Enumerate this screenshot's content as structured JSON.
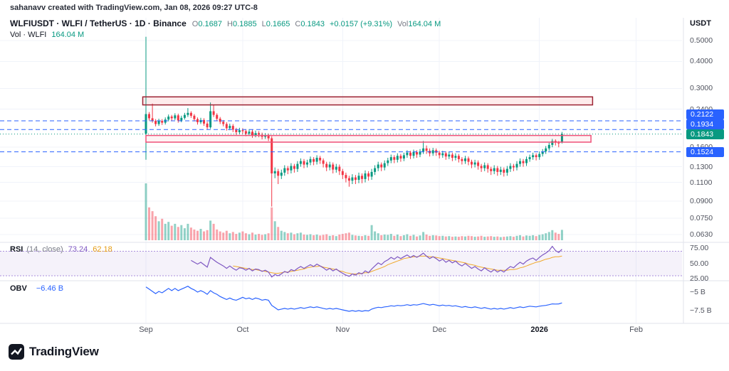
{
  "watermark": "sahanavv created with TradingView.com, Jan 08, 2026 09:27 UTC-8",
  "legend": {
    "title": "WLFIUSDT · WLFI / TetherUS · 1D · Binance",
    "ohlc": {
      "o_label": "O",
      "o": "0.1687",
      "h_label": "H",
      "h": "0.1885",
      "l_label": "L",
      "l": "0.1665",
      "c_label": "C",
      "c": "0.1843",
      "change": "+0.0157 (+9.31%)",
      "vol_label": "Vol",
      "vol": "164.04 M"
    },
    "vol_row": {
      "label": "Vol · WLFI",
      "value": "164.04 M"
    },
    "rsi_row": {
      "title": "RSI",
      "params": "(14, close)",
      "value": "73.24",
      "ma_value": "62.18"
    },
    "obv_row": {
      "title": "OBV",
      "value": "−6.46 B"
    }
  },
  "axis": {
    "currency": "USDT",
    "rsi_axis": [
      {
        "text": "75.00",
        "value": 75
      },
      {
        "text": "50.00",
        "value": 50
      },
      {
        "text": "25.00",
        "value": 25
      }
    ],
    "obv_axis": [
      {
        "text": "−5 B",
        "value": -5
      },
      {
        "text": "−7.5 B",
        "value": -7.5
      }
    ],
    "time_axis": [
      {
        "text": "Sep",
        "index": 0
      },
      {
        "text": "Oct",
        "index": 30
      },
      {
        "text": "Nov",
        "index": 61
      },
      {
        "text": "Dec",
        "index": 91
      },
      {
        "text": "2026",
        "index": 122,
        "major": true
      },
      {
        "text": "Feb",
        "index": 152
      }
    ]
  },
  "logo": {
    "text": "TradingView"
  },
  "colors": {
    "up": "#089981",
    "down": "#f23645",
    "vol_up": "rgba(8,153,129,0.45)",
    "vol_down": "rgba(242,54,69,0.45)",
    "accent_blue": "#2962ff",
    "rsi": "#7e57c2",
    "rsi_ma": "#f0a92c",
    "rsi_band": "#aa8fdc",
    "rsi_fill": "rgba(126,87,194,0.08)",
    "obv": "#2962ff",
    "grid": "#f0f3fa",
    "separator": "#e0e3eb"
  },
  "chart_data": {
    "type": "candlestick",
    "symbol": "WLFIUSDT",
    "pair": "WLFI / TetherUS",
    "interval": "1D",
    "exchange": "Binance",
    "current": {
      "o": 0.1687,
      "h": 0.1885,
      "l": 0.1665,
      "c": 0.1843,
      "change": 0.0157,
      "change_pct": 9.31,
      "volume_m": 164.04
    },
    "price_scale": {
      "type": "log",
      "labels": [
        0.5,
        0.4,
        0.3,
        0.24,
        0.16,
        0.13,
        0.11,
        0.09,
        0.075,
        0.063
      ]
    },
    "levels": [
      {
        "price": 0.2122,
        "label": "0.2122",
        "color": "#2962ff",
        "dash": "6,4"
      },
      {
        "price": 0.1934,
        "label": "0.1934",
        "color": "#2962ff",
        "dash": "6,4"
      },
      {
        "price": 0.1843,
        "label": "0.1843",
        "color": "#089981",
        "dash": "1,3",
        "current": true
      },
      {
        "price": 0.1524,
        "label": "0.1524",
        "color": "#2962ff",
        "dash": "6,4"
      }
    ],
    "zones": [
      {
        "name": "resistance-zone-upper",
        "top": 0.274,
        "bottom": 0.2515,
        "start_index": -1,
        "end_index": 138.5,
        "border": "#9c2333",
        "fill": "rgba(242,54,69,0.10)"
      },
      {
        "name": "resistance-zone-lower",
        "top": 0.1815,
        "bottom": 0.169,
        "start_index": 0,
        "end_index": 138,
        "border": "#ef5078",
        "fill": "rgba(242,54,69,0.06)"
      }
    ],
    "candles": [
      [
        0.185,
        0.52,
        0.14,
        0.228
      ],
      [
        0.228,
        0.233,
        0.213,
        0.218
      ],
      [
        0.218,
        0.255,
        0.208,
        0.212
      ],
      [
        0.212,
        0.216,
        0.2,
        0.205
      ],
      [
        0.205,
        0.217,
        0.201,
        0.212
      ],
      [
        0.212,
        0.216,
        0.203,
        0.208
      ],
      [
        0.208,
        0.22,
        0.204,
        0.215
      ],
      [
        0.215,
        0.227,
        0.211,
        0.222
      ],
      [
        0.222,
        0.226,
        0.213,
        0.218
      ],
      [
        0.218,
        0.23,
        0.214,
        0.225
      ],
      [
        0.225,
        0.229,
        0.208,
        0.213
      ],
      [
        0.213,
        0.224,
        0.209,
        0.219
      ],
      [
        0.219,
        0.231,
        0.215,
        0.226
      ],
      [
        0.226,
        0.243,
        0.221,
        0.231
      ],
      [
        0.231,
        0.235,
        0.219,
        0.224
      ],
      [
        0.224,
        0.228,
        0.211,
        0.216
      ],
      [
        0.216,
        0.22,
        0.204,
        0.209
      ],
      [
        0.209,
        0.219,
        0.205,
        0.214
      ],
      [
        0.214,
        0.218,
        0.201,
        0.206
      ],
      [
        0.206,
        0.21,
        0.193,
        0.198
      ],
      [
        0.198,
        0.258,
        0.195,
        0.235
      ],
      [
        0.235,
        0.252,
        0.221,
        0.226
      ],
      [
        0.226,
        0.23,
        0.212,
        0.217
      ],
      [
        0.217,
        0.221,
        0.205,
        0.21
      ],
      [
        0.21,
        0.214,
        0.2,
        0.205
      ],
      [
        0.205,
        0.209,
        0.191,
        0.196
      ],
      [
        0.196,
        0.206,
        0.192,
        0.201
      ],
      [
        0.201,
        0.205,
        0.188,
        0.193
      ],
      [
        0.193,
        0.197,
        0.183,
        0.188
      ],
      [
        0.188,
        0.197,
        0.184,
        0.192
      ],
      [
        0.192,
        0.196,
        0.185,
        0.19
      ],
      [
        0.19,
        0.194,
        0.18,
        0.185
      ],
      [
        0.185,
        0.194,
        0.181,
        0.189
      ],
      [
        0.189,
        0.193,
        0.177,
        0.182
      ],
      [
        0.182,
        0.191,
        0.178,
        0.186
      ],
      [
        0.186,
        0.19,
        0.178,
        0.183
      ],
      [
        0.183,
        0.187,
        0.174,
        0.179
      ],
      [
        0.179,
        0.186,
        0.175,
        0.181
      ],
      [
        0.181,
        0.185,
        0.171,
        0.176
      ],
      [
        0.176,
        0.18,
        0.085,
        0.121
      ],
      [
        0.121,
        0.129,
        0.115,
        0.124
      ],
      [
        0.124,
        0.127,
        0.108,
        0.118
      ],
      [
        0.118,
        0.126,
        0.114,
        0.122
      ],
      [
        0.122,
        0.132,
        0.118,
        0.128
      ],
      [
        0.128,
        0.131,
        0.12,
        0.125
      ],
      [
        0.125,
        0.135,
        0.121,
        0.131
      ],
      [
        0.131,
        0.134,
        0.122,
        0.127
      ],
      [
        0.127,
        0.138,
        0.123,
        0.134
      ],
      [
        0.134,
        0.142,
        0.13,
        0.138
      ],
      [
        0.138,
        0.141,
        0.128,
        0.133
      ],
      [
        0.133,
        0.14,
        0.129,
        0.136
      ],
      [
        0.136,
        0.145,
        0.132,
        0.141
      ],
      [
        0.141,
        0.144,
        0.132,
        0.137
      ],
      [
        0.137,
        0.147,
        0.133,
        0.143
      ],
      [
        0.143,
        0.146,
        0.134,
        0.139
      ],
      [
        0.139,
        0.142,
        0.129,
        0.134
      ],
      [
        0.134,
        0.137,
        0.124,
        0.129
      ],
      [
        0.129,
        0.137,
        0.125,
        0.133
      ],
      [
        0.133,
        0.136,
        0.121,
        0.126
      ],
      [
        0.126,
        0.134,
        0.122,
        0.13
      ],
      [
        0.13,
        0.133,
        0.119,
        0.124
      ],
      [
        0.124,
        0.127,
        0.114,
        0.119
      ],
      [
        0.119,
        0.122,
        0.11,
        0.115
      ],
      [
        0.115,
        0.118,
        0.105,
        0.112
      ],
      [
        0.112,
        0.12,
        0.108,
        0.116
      ],
      [
        0.116,
        0.119,
        0.108,
        0.113
      ],
      [
        0.113,
        0.122,
        0.109,
        0.118
      ],
      [
        0.118,
        0.121,
        0.109,
        0.114
      ],
      [
        0.114,
        0.125,
        0.11,
        0.121
      ],
      [
        0.121,
        0.124,
        0.112,
        0.117
      ],
      [
        0.117,
        0.127,
        0.113,
        0.123
      ],
      [
        0.123,
        0.132,
        0.119,
        0.128
      ],
      [
        0.128,
        0.137,
        0.124,
        0.133
      ],
      [
        0.133,
        0.136,
        0.124,
        0.129
      ],
      [
        0.129,
        0.139,
        0.125,
        0.135
      ],
      [
        0.135,
        0.143,
        0.131,
        0.139
      ],
      [
        0.139,
        0.148,
        0.135,
        0.144
      ],
      [
        0.144,
        0.147,
        0.135,
        0.14
      ],
      [
        0.14,
        0.15,
        0.136,
        0.146
      ],
      [
        0.146,
        0.149,
        0.137,
        0.142
      ],
      [
        0.142,
        0.151,
        0.138,
        0.147
      ],
      [
        0.147,
        0.155,
        0.143,
        0.151
      ],
      [
        0.151,
        0.154,
        0.141,
        0.146
      ],
      [
        0.146,
        0.156,
        0.142,
        0.152
      ],
      [
        0.152,
        0.155,
        0.143,
        0.148
      ],
      [
        0.148,
        0.157,
        0.144,
        0.153
      ],
      [
        0.153,
        0.171,
        0.149,
        0.158
      ],
      [
        0.158,
        0.163,
        0.149,
        0.154
      ],
      [
        0.154,
        0.158,
        0.145,
        0.15
      ],
      [
        0.15,
        0.159,
        0.146,
        0.155
      ],
      [
        0.155,
        0.158,
        0.146,
        0.151
      ],
      [
        0.151,
        0.154,
        0.142,
        0.147
      ],
      [
        0.147,
        0.154,
        0.143,
        0.15
      ],
      [
        0.15,
        0.153,
        0.14,
        0.145
      ],
      [
        0.145,
        0.152,
        0.141,
        0.148
      ],
      [
        0.148,
        0.151,
        0.138,
        0.143
      ],
      [
        0.143,
        0.15,
        0.139,
        0.146
      ],
      [
        0.146,
        0.149,
        0.136,
        0.141
      ],
      [
        0.141,
        0.144,
        0.133,
        0.138
      ],
      [
        0.138,
        0.146,
        0.134,
        0.142
      ],
      [
        0.142,
        0.145,
        0.132,
        0.137
      ],
      [
        0.137,
        0.14,
        0.128,
        0.133
      ],
      [
        0.133,
        0.14,
        0.129,
        0.136
      ],
      [
        0.136,
        0.139,
        0.126,
        0.131
      ],
      [
        0.131,
        0.134,
        0.123,
        0.128
      ],
      [
        0.128,
        0.136,
        0.124,
        0.132
      ],
      [
        0.132,
        0.135,
        0.122,
        0.127
      ],
      [
        0.127,
        0.13,
        0.119,
        0.124
      ],
      [
        0.124,
        0.132,
        0.12,
        0.128
      ],
      [
        0.128,
        0.131,
        0.118,
        0.123
      ],
      [
        0.123,
        0.13,
        0.119,
        0.126
      ],
      [
        0.126,
        0.129,
        0.117,
        0.122
      ],
      [
        0.122,
        0.131,
        0.118,
        0.127
      ],
      [
        0.127,
        0.135,
        0.123,
        0.131
      ],
      [
        0.131,
        0.134,
        0.124,
        0.129
      ],
      [
        0.129,
        0.138,
        0.125,
        0.134
      ],
      [
        0.134,
        0.142,
        0.13,
        0.138
      ],
      [
        0.138,
        0.141,
        0.13,
        0.135
      ],
      [
        0.135,
        0.145,
        0.131,
        0.141
      ],
      [
        0.141,
        0.148,
        0.137,
        0.144
      ],
      [
        0.144,
        0.151,
        0.14,
        0.147
      ],
      [
        0.147,
        0.15,
        0.139,
        0.144
      ],
      [
        0.144,
        0.153,
        0.14,
        0.149
      ],
      [
        0.149,
        0.157,
        0.145,
        0.153
      ],
      [
        0.153,
        0.162,
        0.149,
        0.158
      ],
      [
        0.158,
        0.168,
        0.154,
        0.164
      ],
      [
        0.164,
        0.175,
        0.16,
        0.171
      ],
      [
        0.171,
        0.174,
        0.163,
        0.168
      ],
      [
        0.168,
        0.171,
        0.16,
        0.167
      ],
      [
        0.1687,
        0.1885,
        0.1665,
        0.1843
      ]
    ],
    "volumes": [
      900,
      520,
      460,
      380,
      300,
      340,
      260,
      290,
      230,
      260,
      210,
      240,
      190,
      260,
      200,
      170,
      150,
      180,
      140,
      160,
      310,
      260,
      170,
      140,
      120,
      150,
      110,
      130,
      100,
      120,
      140,
      110,
      95,
      120,
      90,
      100,
      85,
      95,
      110,
      520,
      300,
      210,
      150,
      130,
      110,
      120,
      95,
      110,
      120,
      90,
      85,
      95,
      80,
      90,
      75,
      85,
      95,
      70,
      80,
      65,
      90,
      100,
      110,
      120,
      85,
      75,
      70,
      65,
      80,
      70,
      240,
      140,
      110,
      80,
      90,
      85,
      100,
      70,
      90,
      65,
      80,
      95,
      70,
      85,
      60,
      75,
      130,
      90,
      70,
      80,
      75,
      65,
      70,
      60,
      65,
      55,
      60,
      55,
      65,
      60,
      70,
      65,
      55,
      60,
      70,
      55,
      60,
      65,
      55,
      60,
      50,
      55,
      60,
      65,
      55,
      70,
      80,
      60,
      75,
      70,
      80,
      65,
      85,
      95,
      110,
      130,
      160,
      120,
      100,
      164
    ],
    "rsi": {
      "start_index": 14,
      "range": [
        25,
        75
      ],
      "band": [
        70,
        30
      ],
      "current": 73.24,
      "values": [
        55,
        52,
        49,
        52,
        48,
        44,
        60,
        56,
        52,
        49,
        46,
        42,
        46,
        42,
        39,
        43,
        42,
        39,
        42,
        38,
        41,
        40,
        37,
        39,
        36,
        28,
        32,
        30,
        33,
        37,
        35,
        40,
        38,
        42,
        45,
        42,
        45,
        48,
        45,
        49,
        46,
        43,
        39,
        42,
        38,
        41,
        37,
        34,
        31,
        29,
        33,
        31,
        35,
        33,
        38,
        35,
        41,
        46,
        51,
        48,
        53,
        56,
        60,
        57,
        61,
        58,
        61,
        64,
        60,
        63,
        60,
        63,
        67,
        62,
        58,
        61,
        58,
        54,
        57,
        52,
        55,
        51,
        54,
        49,
        46,
        50,
        46,
        42,
        45,
        41,
        38,
        43,
        39,
        36,
        40,
        36,
        39,
        36,
        41,
        45,
        43,
        48,
        52,
        49,
        54,
        57,
        59,
        55,
        60,
        64,
        67,
        71,
        78,
        71,
        68,
        73.24
      ]
    },
    "rsi_ma": {
      "start_index": 27,
      "current": 62.18,
      "values": [
        46,
        45,
        44,
        43,
        42,
        41,
        40,
        40,
        39,
        38,
        37,
        36,
        35,
        34,
        34,
        35,
        36,
        36,
        37,
        38,
        39,
        40,
        41,
        43,
        44,
        45,
        45,
        46,
        44,
        43,
        42,
        41,
        40,
        38,
        37,
        35,
        34,
        33,
        33,
        33,
        34,
        35,
        35,
        37,
        39,
        41,
        43,
        45,
        48,
        50,
        52,
        54,
        56,
        58,
        59,
        60,
        61,
        61,
        62,
        62,
        62,
        61,
        61,
        60,
        59,
        58,
        57,
        56,
        55,
        54,
        53,
        52,
        51,
        49,
        48,
        47,
        45,
        44,
        43,
        42,
        41,
        40,
        39,
        39,
        39,
        39,
        40,
        40,
        41,
        43,
        44,
        46,
        48,
        50,
        52,
        53,
        55,
        57,
        58,
        60,
        61,
        61,
        62.18
      ]
    },
    "obv": {
      "current_b": -6.46,
      "values": [
        -4.3,
        -4.6,
        -4.9,
        -5.2,
        -4.9,
        -5.1,
        -4.8,
        -4.5,
        -4.8,
        -4.5,
        -4.8,
        -4.6,
        -4.4,
        -4.2,
        -4.5,
        -4.7,
        -5.0,
        -4.8,
        -5.0,
        -5.3,
        -4.8,
        -5.1,
        -5.3,
        -5.6,
        -5.8,
        -6.0,
        -5.8,
        -6.0,
        -6.1,
        -5.9,
        -5.7,
        -5.9,
        -5.8,
        -6.0,
        -5.8,
        -5.9,
        -6.1,
        -6.0,
        -6.1,
        -6.8,
        -7.1,
        -7.4,
        -7.3,
        -7.2,
        -7.3,
        -7.2,
        -7.3,
        -7.2,
        -7.1,
        -7.2,
        -7.1,
        -7.0,
        -7.1,
        -7.0,
        -7.1,
        -7.2,
        -7.3,
        -7.2,
        -7.3,
        -7.2,
        -7.3,
        -7.4,
        -7.5,
        -7.6,
        -7.5,
        -7.6,
        -7.5,
        -7.6,
        -7.5,
        -7.55,
        -7.3,
        -7.15,
        -7.05,
        -7.1,
        -7.0,
        -6.95,
        -6.85,
        -6.9,
        -6.8,
        -6.85,
        -6.8,
        -6.7,
        -6.8,
        -6.7,
        -6.75,
        -6.65,
        -6.55,
        -6.65,
        -6.75,
        -6.65,
        -6.75,
        -6.85,
        -6.75,
        -6.85,
        -6.8,
        -6.9,
        -6.85,
        -6.95,
        -7.05,
        -6.95,
        -7.05,
        -7.1,
        -7.0,
        -7.1,
        -7.2,
        -7.1,
        -7.2,
        -7.3,
        -7.2,
        -7.3,
        -7.2,
        -7.3,
        -7.2,
        -7.1,
        -7.2,
        -7.1,
        -7.0,
        -7.1,
        -7.0,
        -6.9,
        -6.95,
        -7.0,
        -6.9,
        -6.85,
        -6.8,
        -6.7,
        -6.6,
        -6.62,
        -6.6,
        -6.46
      ]
    }
  }
}
